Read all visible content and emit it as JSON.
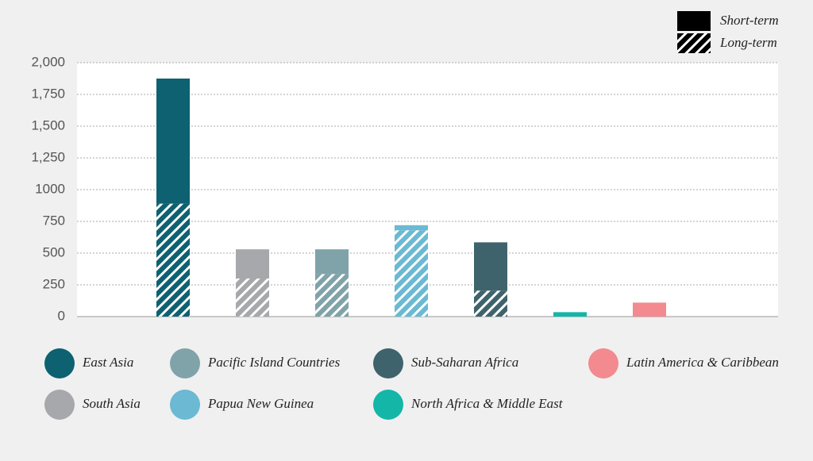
{
  "chart_data": {
    "type": "stacked-bar",
    "categories": [
      "East Asia",
      "South Asia",
      "Pacific Island Countries",
      "Papua New Guinea",
      "Sub-Saharan Africa",
      "North Africa & Middle East",
      "Latin America & Caribbean"
    ],
    "category_colors": [
      "#0d6171",
      "#a7a8ab",
      "#7fa3a8",
      "#6bb9d3",
      "#3f636c",
      "#14b6a8",
      "#f28a90"
    ],
    "series": [
      {
        "name": "Long-term",
        "color": "#000000",
        "pattern": "hatch",
        "values": [
          890,
          300,
          335,
          680,
          205,
          0,
          0
        ]
      },
      {
        "name": "Short-term",
        "color": "#000000",
        "pattern": "solid",
        "values": [
          985,
          230,
          195,
          40,
          380,
          35,
          110
        ]
      }
    ],
    "ylim": [
      0,
      2000
    ],
    "yticks": [
      0,
      250,
      500,
      750,
      {
        "value": 1000,
        "label": "1000"
      },
      {
        "value": 1250,
        "label": "1,250"
      },
      {
        "value": 1500,
        "label": "1,500"
      },
      {
        "value": 1750,
        "label": "1,750"
      },
      {
        "value": 2000,
        "label": "2,000"
      }
    ],
    "grid": true
  }
}
